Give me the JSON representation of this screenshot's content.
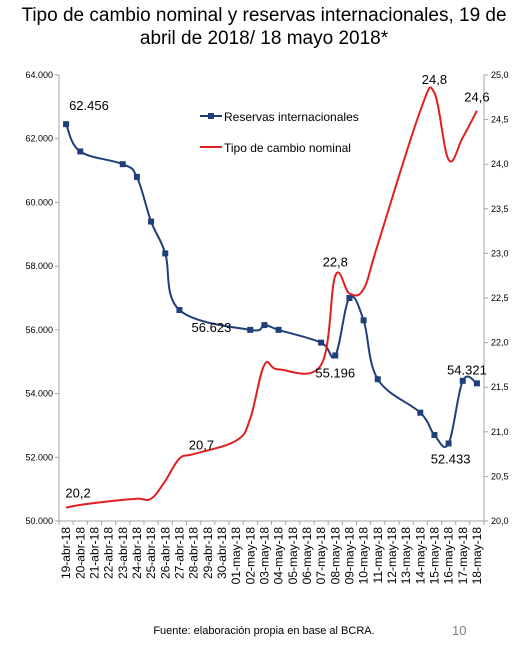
{
  "title_line1": "Tipo de cambio nominal y reservas internacionales, 19 de",
  "title_line2": "abril de 2018/ 18 mayo 2018*",
  "footer": "Fuente: elaboración propia en base al BCRA.",
  "page_number": "10",
  "chart_data": {
    "type": "line",
    "categories": [
      "19-abr-18",
      "20-abr-18",
      "21-abr-18",
      "22-abr-18",
      "23-abr-18",
      "24-abr-18",
      "25-abr-18",
      "26-abr-18",
      "27-abr-18",
      "28-abr-18",
      "29-abr-18",
      "30-abr-18",
      "01-may-18",
      "02-may-18",
      "03-may-18",
      "04-may-18",
      "05-may-18",
      "06-may-18",
      "07-may-18",
      "08-may-18",
      "09-may-18",
      "10-may-18",
      "11-may-18",
      "12-may-18",
      "13-may-18",
      "14-may-18",
      "15-may-18",
      "16-may-18",
      "17-may-18",
      "18-may-18"
    ],
    "left_axis": {
      "ylim": [
        50000,
        64000
      ],
      "ticks": [
        "50.000",
        "52.000",
        "54.000",
        "56.000",
        "58.000",
        "60.000",
        "62.000",
        "64.000"
      ],
      "tick_values": [
        50000,
        52000,
        54000,
        56000,
        58000,
        60000,
        62000,
        64000
      ]
    },
    "right_axis": {
      "ylim": [
        20.0,
        25.0
      ],
      "ticks": [
        "20,0",
        "20,5",
        "21,0",
        "21,5",
        "22,0",
        "22,5",
        "23,0",
        "23,5",
        "24,0",
        "24,5",
        "25,0"
      ],
      "tick_values": [
        20.0,
        20.5,
        21.0,
        21.5,
        22.0,
        22.5,
        23.0,
        23.5,
        24.0,
        24.5,
        25.0
      ]
    },
    "series": [
      {
        "name": "Reservas internacionales",
        "axis": "left",
        "color": "#1f3f7a",
        "marker": "square",
        "points": [
          [
            0,
            62456
          ],
          [
            1,
            61600
          ],
          [
            4,
            61200
          ],
          [
            5,
            60800
          ],
          [
            6,
            59400
          ],
          [
            7,
            58400
          ],
          [
            8,
            56623
          ],
          [
            13,
            56000
          ],
          [
            14,
            56150
          ],
          [
            15,
            56000
          ],
          [
            18,
            55600
          ],
          [
            19,
            55196
          ],
          [
            20,
            57000
          ],
          [
            21,
            56300
          ],
          [
            22,
            54450
          ],
          [
            25,
            53400
          ],
          [
            26,
            52700
          ],
          [
            27,
            52433
          ],
          [
            28,
            54400
          ],
          [
            29,
            54321
          ]
        ]
      },
      {
        "name": "Tipo de cambio nominal",
        "axis": "right",
        "color": "#e02020",
        "points": [
          [
            0,
            20.15
          ],
          [
            1,
            20.18
          ],
          [
            3,
            20.22
          ],
          [
            5,
            20.25
          ],
          [
            6,
            20.25
          ],
          [
            7,
            20.45
          ],
          [
            8,
            20.7
          ],
          [
            9,
            20.75
          ],
          [
            12,
            20.9
          ],
          [
            13,
            21.15
          ],
          [
            14,
            21.75
          ],
          [
            15,
            21.7
          ],
          [
            18,
            21.75
          ],
          [
            19,
            22.75
          ],
          [
            20,
            22.55
          ],
          [
            21,
            22.6
          ],
          [
            22,
            23.1
          ],
          [
            25,
            24.6
          ],
          [
            26,
            24.8
          ],
          [
            27,
            24.05
          ],
          [
            28,
            24.3
          ],
          [
            29,
            24.6
          ]
        ]
      }
    ],
    "annotations": [
      {
        "text": "62.456",
        "x": 0,
        "y": 62456,
        "axis": "left",
        "pos": "right-up"
      },
      {
        "text": "56.623",
        "x": 8,
        "y": 56623,
        "axis": "left",
        "pos": "below"
      },
      {
        "text": "55.196",
        "x": 19,
        "y": 55196,
        "axis": "left",
        "pos": "below"
      },
      {
        "text": "52.433",
        "x": 27,
        "y": 52433,
        "axis": "left",
        "pos": "below"
      },
      {
        "text": "54.321",
        "x": 29,
        "y": 54321,
        "axis": "left",
        "pos": "above"
      },
      {
        "text": "20,2",
        "x": 0,
        "y": 20.15,
        "axis": "right",
        "pos": "above"
      },
      {
        "text": "20,7",
        "x": 8,
        "y": 20.7,
        "axis": "right",
        "pos": "above"
      },
      {
        "text": "22,8",
        "x": 19,
        "y": 22.75,
        "axis": "right",
        "pos": "above"
      },
      {
        "text": "24,8",
        "x": 26,
        "y": 24.8,
        "axis": "right",
        "pos": "above"
      },
      {
        "text": "24,6",
        "x": 29,
        "y": 24.6,
        "axis": "right",
        "pos": "above"
      }
    ],
    "legend": {
      "placement": "top-center",
      "entries": [
        "Reservas internacionales",
        "Tipo de cambio nominal"
      ]
    },
    "grid": false
  }
}
